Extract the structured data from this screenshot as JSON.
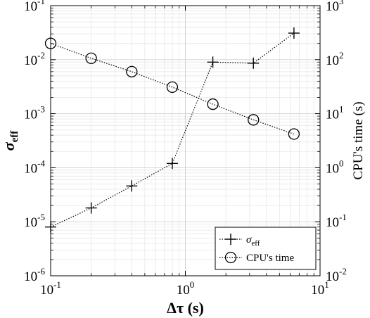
{
  "chart_data": {
    "type": "line",
    "title": "",
    "xlabel": "Δτ (s)",
    "ylabel_left": "σ",
    "ylabel_left_subscript": "eff",
    "ylabel_right": "CPU's time (s)",
    "x_scale": "log",
    "y_left_scale": "log",
    "y_right_scale": "log",
    "xlim": [
      0.1,
      10
    ],
    "ylim_left": [
      1e-06,
      0.1
    ],
    "ylim_right": [
      0.01,
      1000
    ],
    "grid": true,
    "legend_position": "bottom-right",
    "x_ticks": [
      {
        "value": 0.1,
        "base": "10",
        "exp": "-1"
      },
      {
        "value": 1,
        "base": "10",
        "exp": "0"
      },
      {
        "value": 10,
        "base": "10",
        "exp": "1"
      }
    ],
    "y_left_ticks": [
      {
        "value": 1e-06,
        "base": "10",
        "exp": "-6"
      },
      {
        "value": 1e-05,
        "base": "10",
        "exp": "-5"
      },
      {
        "value": 0.0001,
        "base": "10",
        "exp": "-4"
      },
      {
        "value": 0.001,
        "base": "10",
        "exp": "-3"
      },
      {
        "value": 0.01,
        "base": "10",
        "exp": "-2"
      },
      {
        "value": 0.1,
        "base": "10",
        "exp": "-1"
      }
    ],
    "y_right_ticks": [
      {
        "value": 0.01,
        "base": "10",
        "exp": "-2"
      },
      {
        "value": 0.1,
        "base": "10",
        "exp": "-1"
      },
      {
        "value": 1,
        "base": "10",
        "exp": "0"
      },
      {
        "value": 10,
        "base": "10",
        "exp": "1"
      },
      {
        "value": 100,
        "base": "10",
        "exp": "2"
      },
      {
        "value": 1000,
        "base": "10",
        "exp": "3"
      }
    ],
    "series": [
      {
        "name": "σ",
        "name_subscript": "eff",
        "axis": "left",
        "marker": "plus",
        "line_style": "dotted",
        "x": [
          0.1,
          0.2,
          0.4,
          0.8,
          1.6,
          3.2,
          6.4
        ],
        "y": [
          8e-06,
          1.8e-05,
          4.6e-05,
          0.00012,
          0.009,
          0.0086,
          0.031
        ]
      },
      {
        "name": "CPU's time",
        "axis": "right",
        "marker": "circle",
        "line_style": "dotted",
        "x": [
          0.1,
          0.2,
          0.4,
          0.8,
          1.6,
          3.2,
          6.4
        ],
        "y": [
          200,
          106,
          60,
          31,
          15,
          7.7,
          4.2
        ]
      }
    ]
  }
}
